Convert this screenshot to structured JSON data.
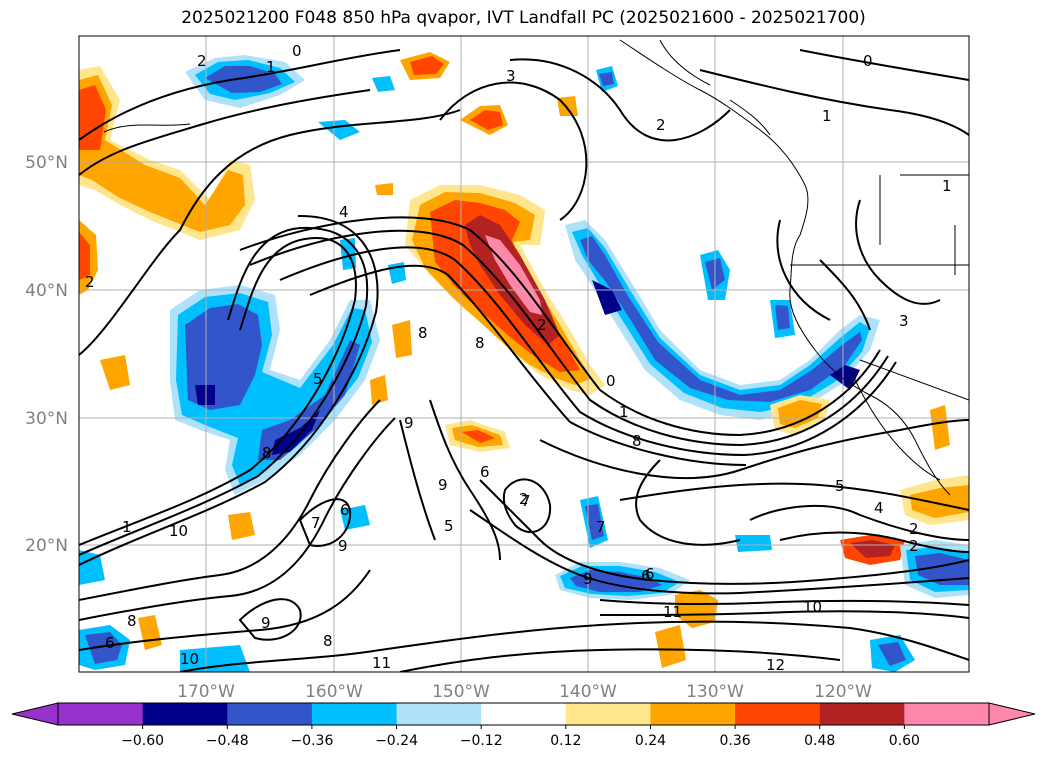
{
  "title": "2025021200 F048 850 hPa qvapor, IVT Landfall PC (2025021600 - 2025021700)",
  "lat_ticks": [
    "50°N",
    "40°N",
    "30°N",
    "20°N"
  ],
  "lon_ticks": [
    "170°W",
    "160°W",
    "150°W",
    "140°W",
    "130°W",
    "120°W"
  ],
  "colorbar": {
    "labels": [
      "-0.60",
      "-0.48",
      "-0.36",
      "-0.24",
      "-0.12",
      "0.12",
      "0.24",
      "0.36",
      "0.48",
      "0.60"
    ],
    "colors": [
      "#9932cc",
      "#00008b",
      "#3355cc",
      "#00bfff",
      "#aee1fa",
      "#ffffff",
      "#ffe68c",
      "#ffa500",
      "#ff4500",
      "#b22222",
      "#ff88aa"
    ],
    "under_color": "#9932cc",
    "over_color": "#ff88aa"
  },
  "contour_labels": [
    "2",
    "0",
    "1",
    "3",
    "0",
    "2",
    "1",
    "1",
    "2",
    "4",
    "2",
    "8",
    "8",
    "5",
    "8",
    "9",
    "9",
    "6",
    "2",
    "0",
    "1",
    "8",
    "5",
    "4",
    "2",
    "7",
    "6",
    "5",
    "6",
    "7",
    "9",
    "6",
    "11",
    "10",
    "12",
    "10",
    "11",
    "8",
    "10",
    "9",
    "8",
    "6",
    "1",
    "9",
    "7",
    "3",
    "2"
  ]
}
